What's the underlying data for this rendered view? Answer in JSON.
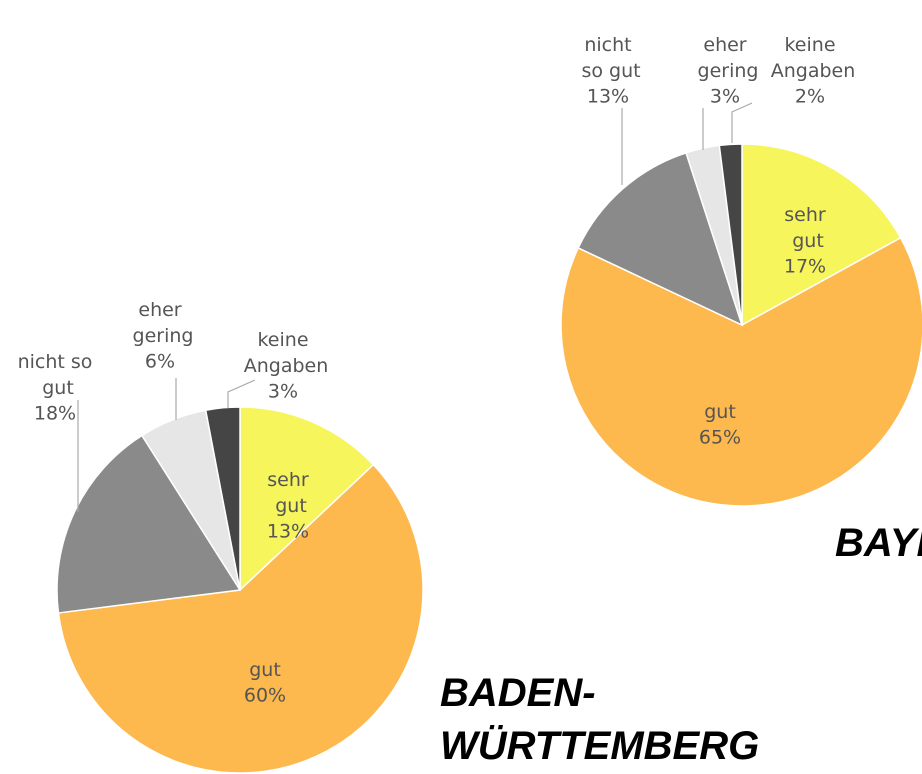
{
  "chart_data": [
    {
      "type": "pie",
      "title": "BADEN-WÜRTTEMBERG",
      "categories": [
        "sehr gut",
        "gut",
        "nicht so gut",
        "eher gering",
        "keine Angaben"
      ],
      "values": [
        13,
        60,
        18,
        6,
        3
      ],
      "value_labels": [
        "13%",
        "60%",
        "18%",
        "6%",
        "3%"
      ],
      "colors": [
        "#f7f55c",
        "#fdb84e",
        "#8a8a8a",
        "#e6e6e6",
        "#454545"
      ]
    },
    {
      "type": "pie",
      "title": "BAYERN",
      "categories": [
        "sehr gut",
        "gut",
        "nicht so gut",
        "eher gering",
        "keine Angaben"
      ],
      "values": [
        17,
        65,
        13,
        3,
        2
      ],
      "value_labels": [
        "17%",
        "65%",
        "13%",
        "3%",
        "2%"
      ],
      "colors": [
        "#f7f55c",
        "#fdb84e",
        "#8a8a8a",
        "#e6e6e6",
        "#454545"
      ]
    }
  ]
}
